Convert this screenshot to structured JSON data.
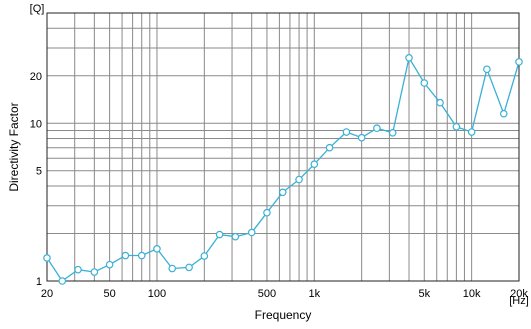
{
  "chart_data": {
    "type": "line",
    "title": "",
    "xlabel": "Frequency",
    "ylabel": "Directivity Factor",
    "x_unit": "[Hz]",
    "y_unit": "[Q]",
    "x_scale": "log",
    "y_scale": "log",
    "xlim": [
      20,
      20000
    ],
    "ylim": [
      1,
      50
    ],
    "grid": true,
    "legend": "none",
    "x_ticks": [
      {
        "value": 20,
        "label": "20"
      },
      {
        "value": 50,
        "label": "50"
      },
      {
        "value": 100,
        "label": "100"
      },
      {
        "value": 500,
        "label": "500"
      },
      {
        "value": 1000,
        "label": "1k"
      },
      {
        "value": 5000,
        "label": "5k"
      },
      {
        "value": 10000,
        "label": "10k"
      },
      {
        "value": 20000,
        "label": "20k"
      }
    ],
    "y_ticks": [
      {
        "value": 1,
        "label": "1"
      },
      {
        "value": 5,
        "label": "5"
      },
      {
        "value": 10,
        "label": "10"
      },
      {
        "value": 20,
        "label": "20"
      }
    ],
    "series": [
      {
        "color": "#3ab0d6",
        "x": [
          20,
          25,
          31.5,
          40,
          50,
          63,
          80,
          100,
          125,
          160,
          200,
          250,
          315,
          400,
          500,
          630,
          800,
          1000,
          1250,
          1600,
          2000,
          2500,
          3150,
          4000,
          5000,
          6300,
          8000,
          10000,
          12500,
          16000,
          20000
        ],
        "y": [
          1.4,
          1.0,
          1.18,
          1.14,
          1.27,
          1.45,
          1.45,
          1.6,
          1.2,
          1.22,
          1.44,
          1.97,
          1.91,
          2.03,
          2.71,
          3.65,
          4.4,
          5.5,
          7.0,
          8.8,
          8.1,
          9.3,
          8.7,
          26.0,
          18.0,
          13.5,
          9.5,
          8.8,
          22.0,
          11.5,
          24.5
        ]
      }
    ]
  }
}
